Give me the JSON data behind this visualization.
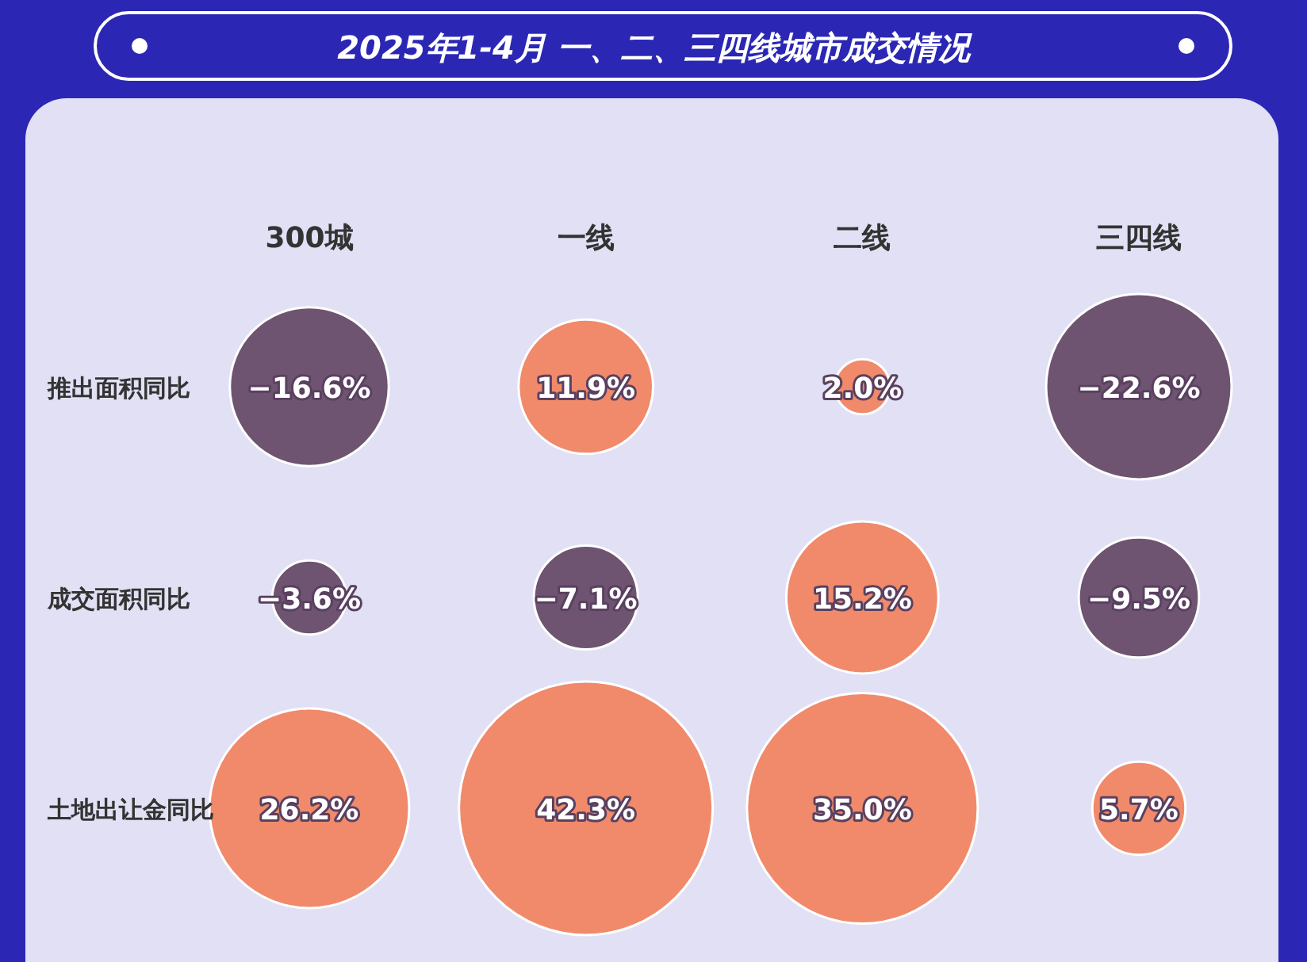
{
  "chart_data": {
    "type": "heatmap",
    "title": "2025年1-4月 一、二、三四线城市成交情况",
    "categories": [
      "300城",
      "一线",
      "二线",
      "三四线"
    ],
    "y_categories": [
      "推出面积同比",
      "成交面积同比",
      "土地出让金同比"
    ],
    "cells": [
      [
        -16.6,
        11.9,
        2.0,
        -22.6
      ],
      [
        -3.6,
        -7.1,
        15.2,
        -9.5
      ],
      [
        26.2,
        42.3,
        35.0,
        5.7
      ]
    ],
    "cell_labels": [
      [
        "−16.6%",
        "11.9%",
        "2.0%",
        "−22.6%"
      ],
      [
        "−3.6%",
        "−7.1%",
        "15.2%",
        "−9.5%"
      ],
      [
        "26.2%",
        "42.3%",
        "35.0%",
        "5.7%"
      ]
    ]
  }
}
